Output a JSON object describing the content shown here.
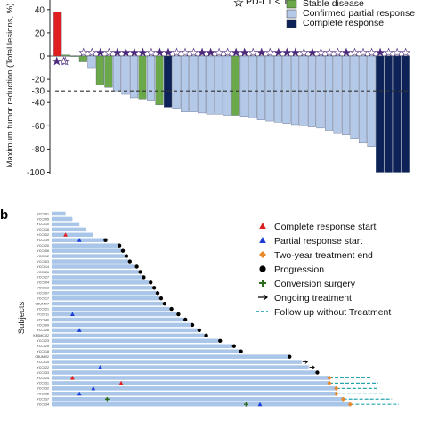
{
  "panel_b_label": "b",
  "chart_data": [
    {
      "type": "bar",
      "panel": "a",
      "ylabel": "Maximum tumor reduction (Total lesions, %)",
      "ylim": [
        -100,
        42
      ],
      "yticks": [
        -100,
        -80,
        -60,
        -40,
        -30,
        -20,
        0,
        20,
        40
      ],
      "reference_line": -30,
      "legend": {
        "pdl1_text": "PD-L1 < 1%",
        "entries": [
          {
            "name": "Stable disease",
            "color": "#6ba84a"
          },
          {
            "name": "Confirmed partial response",
            "color": "#b4c8e8"
          },
          {
            "name": "Complete response",
            "color": "#0d2358"
          }
        ],
        "progressive_color": "#e02020"
      },
      "bars": [
        {
          "value": 38,
          "response": "progressive",
          "marker": "purple"
        },
        {
          "value": 1,
          "response": "stable",
          "marker": "white"
        },
        {
          "value": 0,
          "response": "stable",
          "marker": "none"
        },
        {
          "value": -5,
          "response": "stable",
          "marker": "white"
        },
        {
          "value": -10,
          "response": "partial",
          "marker": "white"
        },
        {
          "value": -25,
          "response": "stable",
          "marker": "purple"
        },
        {
          "value": -27,
          "response": "stable",
          "marker": "white"
        },
        {
          "value": -30,
          "response": "partial",
          "marker": "purple"
        },
        {
          "value": -33,
          "response": "partial",
          "marker": "purple"
        },
        {
          "value": -36,
          "response": "partial",
          "marker": "purple"
        },
        {
          "value": -37,
          "response": "stable",
          "marker": "purple"
        },
        {
          "value": -38,
          "response": "partial",
          "marker": "white"
        },
        {
          "value": -42,
          "response": "stable",
          "marker": "purple"
        },
        {
          "value": -44,
          "response": "complete",
          "marker": "purple"
        },
        {
          "value": -45,
          "response": "partial",
          "marker": "white"
        },
        {
          "value": -48,
          "response": "partial",
          "marker": "white"
        },
        {
          "value": -48,
          "response": "partial",
          "marker": "white"
        },
        {
          "value": -49,
          "response": "partial",
          "marker": "purple"
        },
        {
          "value": -50,
          "response": "partial",
          "marker": "purple"
        },
        {
          "value": -50,
          "response": "partial",
          "marker": "white"
        },
        {
          "value": -51,
          "response": "partial",
          "marker": "white"
        },
        {
          "value": -51,
          "response": "stable",
          "marker": "purple"
        },
        {
          "value": -52,
          "response": "partial",
          "marker": "purple"
        },
        {
          "value": -53,
          "response": "partial",
          "marker": "white"
        },
        {
          "value": -55,
          "response": "partial",
          "marker": "purple"
        },
        {
          "value": -56,
          "response": "partial",
          "marker": "white"
        },
        {
          "value": -57,
          "response": "partial",
          "marker": "purple"
        },
        {
          "value": -58,
          "response": "partial",
          "marker": "purple"
        },
        {
          "value": -59,
          "response": "partial",
          "marker": "purple"
        },
        {
          "value": -60,
          "response": "partial",
          "marker": "white"
        },
        {
          "value": -61,
          "response": "partial",
          "marker": "purple"
        },
        {
          "value": -62,
          "response": "partial",
          "marker": "white"
        },
        {
          "value": -64,
          "response": "partial",
          "marker": "white"
        },
        {
          "value": -66,
          "response": "partial",
          "marker": "white"
        },
        {
          "value": -68,
          "response": "partial",
          "marker": "purple"
        },
        {
          "value": -71,
          "response": "partial",
          "marker": "white"
        },
        {
          "value": -75,
          "response": "partial",
          "marker": "white"
        },
        {
          "value": -78,
          "response": "partial",
          "marker": "white"
        },
        {
          "value": -100,
          "response": "complete",
          "marker": "purple"
        },
        {
          "value": -100,
          "response": "complete",
          "marker": "white"
        },
        {
          "value": -100,
          "response": "complete",
          "marker": "white"
        },
        {
          "value": -100,
          "response": "complete",
          "marker": "white"
        }
      ]
    },
    {
      "type": "swimmer",
      "panel": "b",
      "ylabel": "Subjects",
      "legend": [
        {
          "label": "Complete response start",
          "symbol": "triangle",
          "color": "#e02020"
        },
        {
          "label": "Partial response start",
          "symbol": "triangle",
          "color": "#1b3fd6"
        },
        {
          "label": "Two-year treatment end",
          "symbol": "diamond",
          "color": "#e8872a"
        },
        {
          "label": "Progression",
          "symbol": "circle",
          "color": "#000000"
        },
        {
          "label": "Conversion surgery",
          "symbol": "plus",
          "color": "#2e6b1e"
        },
        {
          "label": "Ongoing treatment",
          "symbol": "arrow",
          "color": "#000000"
        },
        {
          "label": "Follow up without Treatment",
          "symbol": "dashed",
          "color": "#2aa6b3"
        }
      ],
      "subjects": [
        {
          "id": "YCC001",
          "duration": 2,
          "events": []
        },
        {
          "id": "YCC005",
          "duration": 3,
          "events": []
        },
        {
          "id": "YCC010",
          "duration": 4,
          "events": []
        },
        {
          "id": "YCC016",
          "duration": 5,
          "events": []
        },
        {
          "id": "YCC002",
          "duration": 6,
          "events": [
            {
              "t": 2,
              "type": "complete"
            }
          ]
        },
        {
          "id": "YCC019",
          "duration": 8,
          "events": [
            {
              "t": 4,
              "type": "partial"
            },
            {
              "t": 7.5,
              "type": "progression"
            }
          ]
        },
        {
          "id": "YCC020",
          "duration": 9.5,
          "events": [
            {
              "t": 9.5,
              "type": "progression"
            }
          ]
        },
        {
          "id": "YCC006",
          "duration": 10,
          "events": [
            {
              "t": 10,
              "type": "progression"
            }
          ]
        },
        {
          "id": "YCC012",
          "duration": 10.5,
          "events": [
            {
              "t": 10.5,
              "type": "progression"
            }
          ]
        },
        {
          "id": "YCC003",
          "duration": 11,
          "events": [
            {
              "t": 11,
              "type": "progression"
            }
          ]
        },
        {
          "id": "YCC014",
          "duration": 12,
          "events": [
            {
              "t": 12,
              "type": "progression"
            }
          ]
        },
        {
          "id": "YCC026",
          "duration": 12.5,
          "events": [
            {
              "t": 12.5,
              "type": "progression"
            }
          ]
        },
        {
          "id": "YCC027",
          "duration": 13,
          "events": [
            {
              "t": 13,
              "type": "progression"
            }
          ]
        },
        {
          "id": "YCC004",
          "duration": 14,
          "events": [
            {
              "t": 14,
              "type": "progression"
            }
          ]
        },
        {
          "id": "YCC013",
          "duration": 14.5,
          "events": [
            {
              "t": 14.5,
              "type": "progression"
            }
          ]
        },
        {
          "id": "YCC007",
          "duration": 15,
          "events": [
            {
              "t": 15,
              "type": "progression"
            }
          ]
        },
        {
          "id": "YCC017",
          "duration": 15.5,
          "events": [
            {
              "t": 15.5,
              "type": "progression"
            }
          ]
        },
        {
          "id": "CBUM 07",
          "duration": 16,
          "events": [
            {
              "t": 16,
              "type": "progression"
            }
          ]
        },
        {
          "id": "YCC021",
          "duration": 17,
          "events": [
            {
              "t": 17,
              "type": "progression"
            }
          ]
        },
        {
          "id": "YCC011",
          "duration": 18,
          "events": [
            {
              "t": 3,
              "type": "partial"
            },
            {
              "t": 18,
              "type": "progression"
            }
          ]
        },
        {
          "id": "YCC040",
          "duration": 19,
          "events": [
            {
              "t": 19,
              "type": "progression"
            }
          ]
        },
        {
          "id": "YCC009",
          "duration": 20,
          "events": [
            {
              "t": 20,
              "type": "progression"
            }
          ]
        },
        {
          "id": "YCC028",
          "duration": 21,
          "events": [
            {
              "t": 4,
              "type": "partial"
            },
            {
              "t": 21,
              "type": "progression"
            }
          ]
        },
        {
          "id": "KBSMC 02",
          "duration": 22,
          "events": [
            {
              "t": 22,
              "type": "progression"
            }
          ]
        },
        {
          "id": "YCC023",
          "duration": 24,
          "events": [
            {
              "t": 24,
              "type": "progression"
            }
          ]
        },
        {
          "id": "YCC029",
          "duration": 26,
          "events": [
            {
              "t": 26,
              "type": "progression"
            }
          ]
        },
        {
          "id": "YCC018",
          "duration": 27,
          "events": [
            {
              "t": 27,
              "type": "progression"
            }
          ]
        },
        {
          "id": "CBUM 02",
          "duration": 34,
          "events": [
            {
              "t": 34,
              "type": "progression"
            }
          ]
        },
        {
          "id": "YCC015",
          "duration": 36,
          "events": [
            {
              "t": 36,
              "type": "ongoing"
            }
          ]
        },
        {
          "id": "YCC022",
          "duration": 37,
          "events": [
            {
              "t": 7,
              "type": "partial"
            },
            {
              "t": 37,
              "type": "ongoing"
            }
          ]
        },
        {
          "id": "YCC033",
          "duration": 38,
          "events": [
            {
              "t": 38,
              "type": "progression"
            }
          ]
        },
        {
          "id": "YCC024",
          "duration": 40,
          "events": [
            {
              "t": 3,
              "type": "complete"
            },
            {
              "t": 40,
              "type": "twoyear"
            }
          ],
          "followup": 46
        },
        {
          "id": "YCC031",
          "duration": 40,
          "events": [
            {
              "t": 10,
              "type": "complete"
            },
            {
              "t": 40,
              "type": "twoyear"
            }
          ],
          "followup": 47
        },
        {
          "id": "YCC032",
          "duration": 41,
          "events": [
            {
              "t": 6,
              "type": "partial"
            },
            {
              "t": 41,
              "type": "twoyear"
            }
          ],
          "followup": 47
        },
        {
          "id": "YCC035",
          "duration": 41,
          "events": [
            {
              "t": 4,
              "type": "partial"
            },
            {
              "t": 41,
              "type": "twoyear"
            }
          ],
          "followup": 48
        },
        {
          "id": "YCC037",
          "duration": 42,
          "events": [
            {
              "t": 8,
              "type": "surgery"
            },
            {
              "t": 42,
              "type": "twoyear"
            }
          ],
          "followup": 49
        },
        {
          "id": "YCC034",
          "duration": 43,
          "events": [
            {
              "t": 28,
              "type": "surgery"
            },
            {
              "t": 30,
              "type": "partial"
            },
            {
              "t": 43,
              "type": "twoyear"
            }
          ],
          "followup": 50
        }
      ]
    }
  ]
}
